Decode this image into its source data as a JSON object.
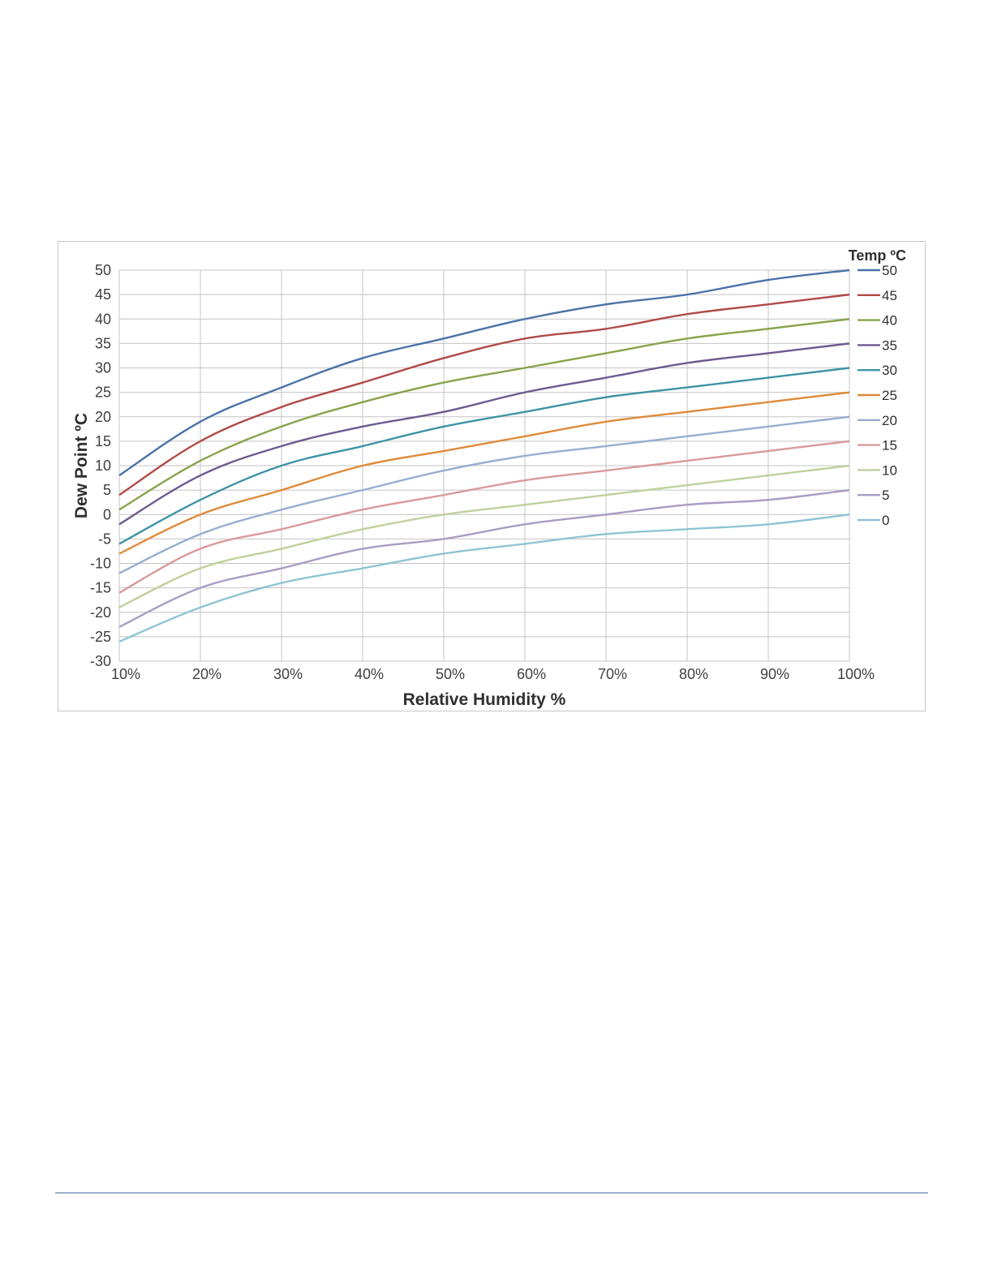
{
  "chart_data": {
    "type": "line",
    "title": "",
    "xlabel": "Relative Humidity %",
    "ylabel": "Dew Point ºC",
    "legend_title": "Temp ºC",
    "legend_position": "right",
    "grid": true,
    "xlim": [
      10,
      100
    ],
    "ylim": [
      -30,
      50
    ],
    "x": [
      10,
      20,
      30,
      40,
      50,
      60,
      70,
      80,
      90,
      100
    ],
    "x_tick_labels": [
      "10%",
      "20%",
      "30%",
      "40%",
      "50%",
      "60%",
      "70%",
      "80%",
      "90%",
      "100%"
    ],
    "y_ticks": [
      "50",
      "45",
      "40",
      "35",
      "30",
      "25",
      "20",
      "15",
      "10",
      "5",
      "0",
      "-5",
      "-10",
      "-15",
      "-20",
      "-25",
      "-30"
    ],
    "series": [
      {
        "name": "50",
        "color": "#4a72a8",
        "values": [
          8,
          19,
          26,
          32,
          36,
          40,
          43,
          45,
          48,
          50
        ]
      },
      {
        "name": "45",
        "color": "#b04a47",
        "values": [
          4,
          15,
          22,
          27,
          32,
          36,
          38,
          41,
          43,
          45
        ]
      },
      {
        "name": "40",
        "color": "#88a34b",
        "values": [
          1,
          11,
          18,
          23,
          27,
          30,
          33,
          36,
          38,
          40
        ]
      },
      {
        "name": "35",
        "color": "#6d5a8e",
        "values": [
          -2,
          8,
          14,
          18,
          21,
          25,
          28,
          31,
          33,
          35
        ]
      },
      {
        "name": "30",
        "color": "#3e93a6",
        "values": [
          -6,
          3,
          10,
          14,
          18,
          21,
          24,
          26,
          28,
          30
        ]
      },
      {
        "name": "25",
        "color": "#e08a3a",
        "values": [
          -8,
          0,
          5,
          10,
          13,
          16,
          19,
          21,
          23,
          25
        ]
      },
      {
        "name": "20",
        "color": "#98aed0",
        "values": [
          -12,
          -4,
          1,
          5,
          9,
          12,
          14,
          16,
          18,
          20
        ]
      },
      {
        "name": "15",
        "color": "#d99a9a",
        "values": [
          -16,
          -7,
          -3,
          1,
          4,
          7,
          9,
          11,
          13,
          15
        ]
      },
      {
        "name": "10",
        "color": "#bfd19b",
        "values": [
          -19,
          -11,
          -7,
          -3,
          0,
          2,
          4,
          6,
          8,
          10
        ]
      },
      {
        "name": "5",
        "color": "#a99cc4",
        "values": [
          -23,
          -15,
          -11,
          -7,
          -5,
          -2,
          0,
          2,
          3,
          5
        ]
      },
      {
        "name": "0",
        "color": "#8fc4d3",
        "values": [
          -26,
          -19,
          -14,
          -11,
          -8,
          -6,
          -4,
          -3,
          -2,
          0
        ]
      }
    ]
  }
}
